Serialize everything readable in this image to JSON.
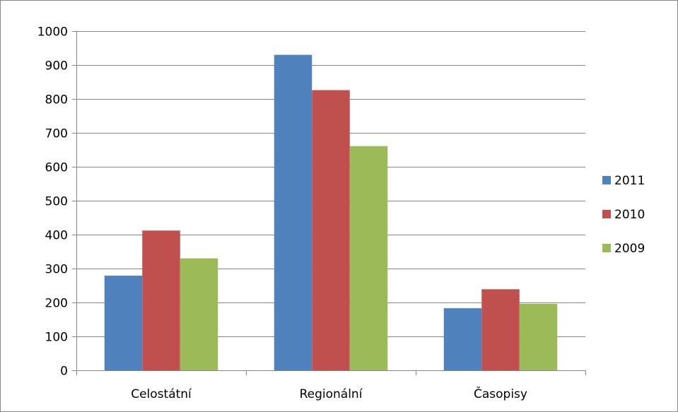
{
  "chart_data": {
    "type": "bar",
    "categories": [
      "Celostátní",
      "Regionální",
      "Časopisy"
    ],
    "series": [
      {
        "name": "2011",
        "color": "#4F81BD",
        "values": [
          279,
          930,
          183
        ]
      },
      {
        "name": "2010",
        "color": "#C0504D",
        "values": [
          412,
          826,
          239
        ]
      },
      {
        "name": "2009",
        "color": "#9BBB59",
        "values": [
          330,
          661,
          196
        ]
      }
    ],
    "ylim": [
      0,
      1000
    ],
    "yticks": [
      "0",
      "100",
      "200",
      "300",
      "400",
      "500",
      "600",
      "700",
      "800",
      "900",
      "1000"
    ],
    "grid": true,
    "legend_position": "right"
  }
}
